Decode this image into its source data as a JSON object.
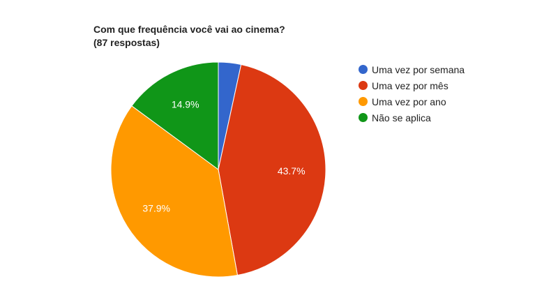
{
  "chart_data": {
    "type": "pie",
    "title": "Com que frequência você vai ao cinema?",
    "subtitle": "(87 respostas)",
    "legend_position": "right",
    "slices": [
      {
        "label": "Uma vez por semana",
        "value": 3.4,
        "value_label": "",
        "color": "#3366cc"
      },
      {
        "label": "Uma vez por mês",
        "value": 43.7,
        "value_label": "43.7%",
        "color": "#dc3912"
      },
      {
        "label": "Uma vez por ano",
        "value": 37.9,
        "value_label": "37.9%",
        "color": "#ff9900"
      },
      {
        "label": "Não se aplica",
        "value": 14.9,
        "value_label": "14.9%",
        "color": "#109618"
      }
    ]
  }
}
